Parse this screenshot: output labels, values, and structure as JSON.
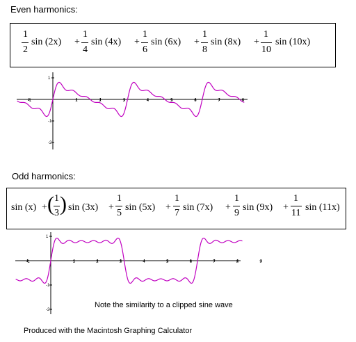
{
  "even": {
    "heading": "Even harmonics:",
    "terms": [
      {
        "num": "1",
        "den": "2",
        "fn": "sin (2x)",
        "op": "+"
      },
      {
        "num": "1",
        "den": "4",
        "fn": "sin (4x)",
        "op": "+"
      },
      {
        "num": "1",
        "den": "6",
        "fn": "sin (6x)",
        "op": "+"
      },
      {
        "num": "1",
        "den": "8",
        "fn": "sin (8x)",
        "op": "+"
      },
      {
        "num": "1",
        "den": "10",
        "fn": "sin (10x)",
        "op": ""
      }
    ],
    "x_ticks": [
      "-1",
      "1",
      "2",
      "3",
      "4",
      "5",
      "6",
      "7",
      "8"
    ],
    "y_ticks": [
      "1",
      "-1",
      "-2"
    ]
  },
  "odd": {
    "heading": "Odd harmonics:",
    "first": "sin (x)",
    "terms": [
      {
        "num": "1",
        "den": "3",
        "fn": "sin (3x)",
        "paren": true
      },
      {
        "num": "1",
        "den": "5",
        "fn": "sin (5x)"
      },
      {
        "num": "1",
        "den": "7",
        "fn": "sin (7x)"
      },
      {
        "num": "1",
        "den": "9",
        "fn": "sin (9x)"
      },
      {
        "num": "1",
        "den": "11",
        "fn": "sin (11x)"
      }
    ],
    "x_ticks": [
      "-1",
      "1",
      "2",
      "3",
      "4",
      "5",
      "6",
      "7",
      "8",
      "9"
    ],
    "y_ticks": [
      "1",
      "-1",
      "-2"
    ]
  },
  "note": "Note the similarity to a clipped sine wave",
  "credit": "Produced with the Macintosh Graphing Calculator",
  "colors": {
    "curve": "#c000c0",
    "axis": "#000000"
  }
}
